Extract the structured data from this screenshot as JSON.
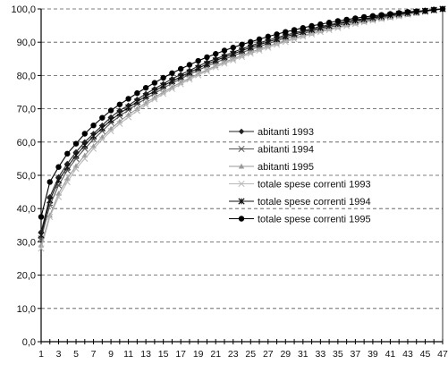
{
  "chart_data": {
    "type": "line",
    "title": "",
    "xlabel": "",
    "ylabel": "",
    "x": [
      1,
      2,
      3,
      4,
      5,
      6,
      7,
      8,
      9,
      10,
      11,
      12,
      13,
      14,
      15,
      16,
      17,
      18,
      19,
      20,
      21,
      22,
      23,
      24,
      25,
      26,
      27,
      28,
      29,
      30,
      31,
      32,
      33,
      34,
      35,
      36,
      37,
      38,
      39,
      40,
      41,
      42,
      43,
      44,
      45,
      46,
      47
    ],
    "x_tick_labels": [
      "1",
      "3",
      "5",
      "7",
      "9",
      "11",
      "13",
      "15",
      "17",
      "19",
      "21",
      "23",
      "25",
      "27",
      "29",
      "31",
      "33",
      "35",
      "37",
      "39",
      "41",
      "43",
      "45",
      "47"
    ],
    "y_tick_labels": [
      "0,0",
      "10,0",
      "20,0",
      "30,0",
      "40,0",
      "50,0",
      "60,0",
      "70,0",
      "80,0",
      "90,0",
      "100,0"
    ],
    "ylim": [
      0,
      100
    ],
    "xlim": [
      1,
      47
    ],
    "grid": "horizontal dashed",
    "legend_position": "center-right",
    "series": [
      {
        "name": "abitanti 1993",
        "marker": "diamond",
        "color": "#222222",
        "values": [
          33.0,
          43.5,
          49.5,
          53.5,
          57.0,
          60.0,
          62.5,
          65.0,
          67.5,
          69.5,
          71.0,
          72.8,
          74.5,
          76.0,
          77.5,
          79.0,
          80.3,
          81.5,
          82.8,
          84.0,
          85.0,
          86.0,
          87.0,
          88.0,
          88.9,
          89.8,
          90.6,
          91.4,
          92.1,
          92.8,
          93.5,
          94.1,
          94.7,
          95.2,
          95.8,
          96.3,
          96.7,
          97.1,
          97.5,
          97.9,
          98.2,
          98.6,
          98.9,
          99.2,
          99.5,
          99.8,
          100.0
        ]
      },
      {
        "name": "abitanti 1994",
        "marker": "asterisk",
        "color": "#555555",
        "values": [
          31.0,
          41.0,
          47.0,
          51.5,
          55.0,
          58.0,
          60.8,
          63.3,
          65.8,
          67.8,
          69.6,
          71.4,
          73.1,
          74.6,
          76.2,
          77.7,
          79.0,
          80.3,
          81.6,
          82.8,
          83.9,
          84.9,
          85.9,
          86.9,
          87.8,
          88.7,
          89.6,
          90.4,
          91.2,
          91.9,
          92.6,
          93.3,
          93.9,
          94.5,
          95.1,
          95.6,
          96.1,
          96.6,
          97.0,
          97.4,
          97.8,
          98.2,
          98.6,
          98.9,
          99.3,
          99.6,
          100.0
        ]
      },
      {
        "name": "abitanti 1995",
        "marker": "triangle",
        "color": "#999999",
        "values": [
          29.0,
          38.0,
          44.5,
          49.0,
          52.8,
          56.0,
          58.8,
          61.5,
          64.0,
          66.2,
          68.2,
          70.0,
          71.8,
          73.4,
          75.0,
          76.5,
          77.9,
          79.2,
          80.5,
          81.7,
          82.9,
          84.0,
          85.0,
          86.0,
          87.0,
          87.9,
          88.8,
          89.7,
          90.5,
          91.3,
          92.0,
          92.7,
          93.4,
          94.0,
          94.6,
          95.2,
          95.7,
          96.2,
          96.7,
          97.1,
          97.5,
          97.9,
          98.3,
          98.7,
          99.1,
          99.5,
          100.0
        ]
      },
      {
        "name": "totale spese correnti 1993",
        "marker": "x",
        "color": "#b8b8b8",
        "values": [
          28.0,
          37.5,
          43.5,
          48.0,
          52.0,
          55.0,
          58.0,
          60.8,
          63.3,
          65.5,
          67.5,
          69.4,
          71.2,
          72.9,
          74.5,
          76.0,
          77.4,
          78.8,
          80.1,
          81.3,
          82.5,
          83.6,
          84.6,
          85.6,
          86.6,
          87.5,
          88.4,
          89.3,
          90.1,
          90.9,
          91.7,
          92.4,
          93.1,
          93.7,
          94.3,
          94.9,
          95.5,
          96.0,
          96.5,
          97.0,
          97.4,
          97.8,
          98.3,
          98.7,
          99.1,
          99.5,
          100.0
        ]
      },
      {
        "name": "totale spese correnti 1994",
        "marker": "star",
        "color": "#111111",
        "values": [
          32.0,
          42.5,
          48.5,
          52.5,
          56.0,
          59.0,
          61.8,
          64.2,
          66.6,
          68.6,
          70.4,
          72.1,
          73.8,
          75.3,
          76.9,
          78.3,
          79.6,
          80.9,
          82.2,
          83.4,
          84.5,
          85.5,
          86.5,
          87.5,
          88.4,
          89.3,
          90.1,
          90.9,
          91.7,
          92.4,
          93.1,
          93.7,
          94.3,
          94.9,
          95.5,
          96.0,
          96.5,
          96.9,
          97.3,
          97.7,
          98.1,
          98.5,
          98.8,
          99.1,
          99.4,
          99.7,
          100.0
        ]
      },
      {
        "name": "totale spese correnti 1995",
        "marker": "circle",
        "color": "#000000",
        "values": [
          37.5,
          48.0,
          52.5,
          56.5,
          59.5,
          62.5,
          65.0,
          67.3,
          69.5,
          71.3,
          73.0,
          74.7,
          76.3,
          77.8,
          79.3,
          80.7,
          82.0,
          83.2,
          84.4,
          85.5,
          86.5,
          87.5,
          88.4,
          89.3,
          90.1,
          90.9,
          91.7,
          92.4,
          93.1,
          93.7,
          94.3,
          94.9,
          95.4,
          95.9,
          96.4,
          96.8,
          97.2,
          97.6,
          97.9,
          98.2,
          98.5,
          98.8,
          99.1,
          99.3,
          99.5,
          99.8,
          100.0
        ]
      }
    ]
  }
}
